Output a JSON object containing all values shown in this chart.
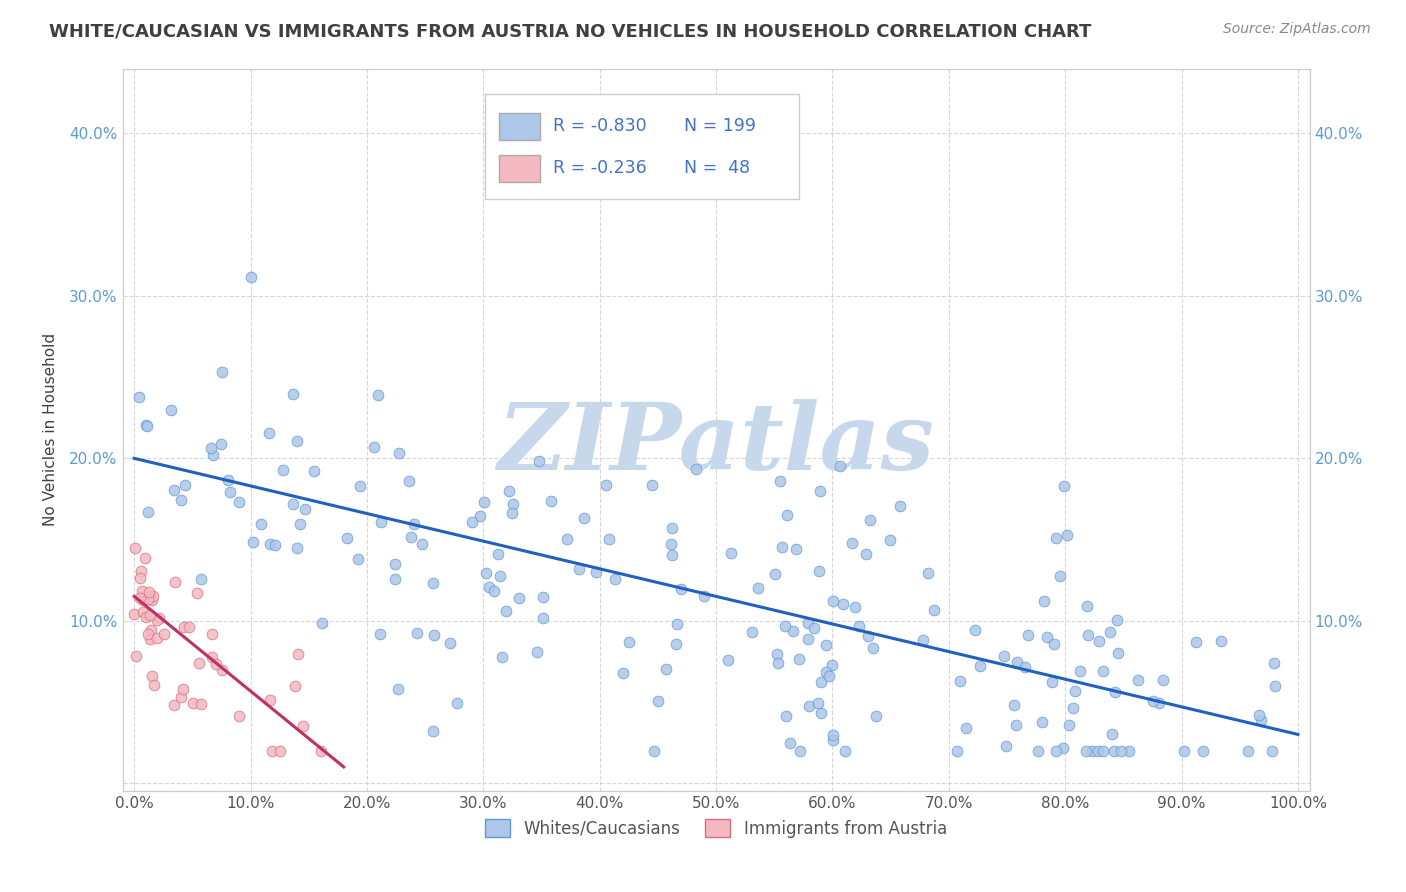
{
  "title": "WHITE/CAUCASIAN VS IMMIGRANTS FROM AUSTRIA NO VEHICLES IN HOUSEHOLD CORRELATION CHART",
  "source": "Source: ZipAtlas.com",
  "ylabel": "No Vehicles in Household",
  "watermark": "ZIPatlas",
  "xlim": [
    -0.01,
    1.01
  ],
  "ylim": [
    -0.005,
    0.44
  ],
  "yticks": [
    0.0,
    0.1,
    0.2,
    0.3,
    0.4
  ],
  "ytick_labels": [
    "",
    "10.0%",
    "20.0%",
    "30.0%",
    "40.0%"
  ],
  "xticks": [
    0.0,
    0.1,
    0.2,
    0.3,
    0.4,
    0.5,
    0.6,
    0.7,
    0.8,
    0.9,
    1.0
  ],
  "xtick_labels": [
    "0.0%",
    "10.0%",
    "20.0%",
    "30.0%",
    "40.0%",
    "50.0%",
    "60.0%",
    "70.0%",
    "80.0%",
    "90.0%",
    "100.0%"
  ],
  "legend_stats": [
    {
      "R": "-0.830",
      "N": "199"
    },
    {
      "R": "-0.236",
      "N": " 48"
    }
  ],
  "legend_series": [
    {
      "label": "Whites/Caucasians"
    },
    {
      "label": "Immigrants from Austria"
    }
  ],
  "blue_line": {
    "x0": 0.0,
    "y0": 0.2,
    "x1": 1.0,
    "y1": 0.03
  },
  "pink_line": {
    "x0": 0.0,
    "y0": 0.115,
    "x1": 0.18,
    "y1": 0.01
  },
  "blue_scatter_color": "#aec6e8",
  "blue_scatter_edge": "#5b9bd5",
  "pink_scatter_color": "#f4b8c1",
  "pink_scatter_edge": "#d47080",
  "trend_blue_color": "#2060c0",
  "trend_pink_color": "#c03060",
  "grid_color": "#cccccc",
  "background_color": "#ffffff",
  "title_color": "#404040",
  "source_color": "#888888",
  "stat_label_color": "#4472c4",
  "watermark_color": "#c8d8ec",
  "title_fontsize": 13,
  "tick_fontsize": 11,
  "ylabel_fontsize": 11
}
